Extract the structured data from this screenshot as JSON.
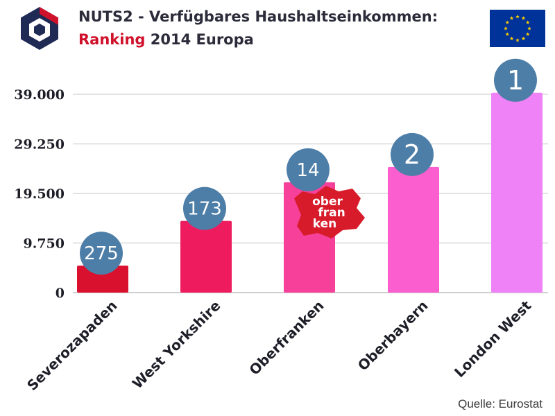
{
  "header": {
    "title_line1": "NUTS2 - Verfügbares Haushaltseinkommen:",
    "title_line2_highlight": "Ranking",
    "title_line2_rest": " 2014 Europa"
  },
  "logos": {
    "brand_icon": "hexagon-logo-icon",
    "flag_icon": "eu-flag-icon",
    "oberfranken_logo_text": [
      "ober",
      "fran",
      "ken"
    ]
  },
  "colors": {
    "title": "#2b2b3a",
    "highlight": "#d0112b",
    "badge": "#4d7ea8",
    "flag_blue": "#003399",
    "flag_star": "#ffcc00"
  },
  "chart_data": {
    "type": "bar",
    "title": "NUTS2 - Verfügbares Haushaltseinkommen: Ranking 2014 Europa",
    "categories": [
      "Severozapaden",
      "West Yorkshire",
      "Oberfranken",
      "Oberbayern",
      "London West"
    ],
    "values": [
      5300,
      14100,
      21700,
      24700,
      39300
    ],
    "ranks": [
      "275",
      "173",
      "14",
      "2",
      "1"
    ],
    "bar_colors": [
      "#d9112e",
      "#ee1c5e",
      "#f6409a",
      "#fb5fcf",
      "#ef82f6"
    ],
    "yticks": [
      0,
      9750,
      19500,
      29250,
      39000
    ],
    "ytick_labels": [
      "0",
      "9.750",
      "19.500",
      "29.250",
      "39.000"
    ],
    "ylim": [
      0,
      39000
    ],
    "grid": true,
    "xlabel": "",
    "ylabel": ""
  },
  "footer": {
    "source": "Quelle: Eurostat"
  }
}
